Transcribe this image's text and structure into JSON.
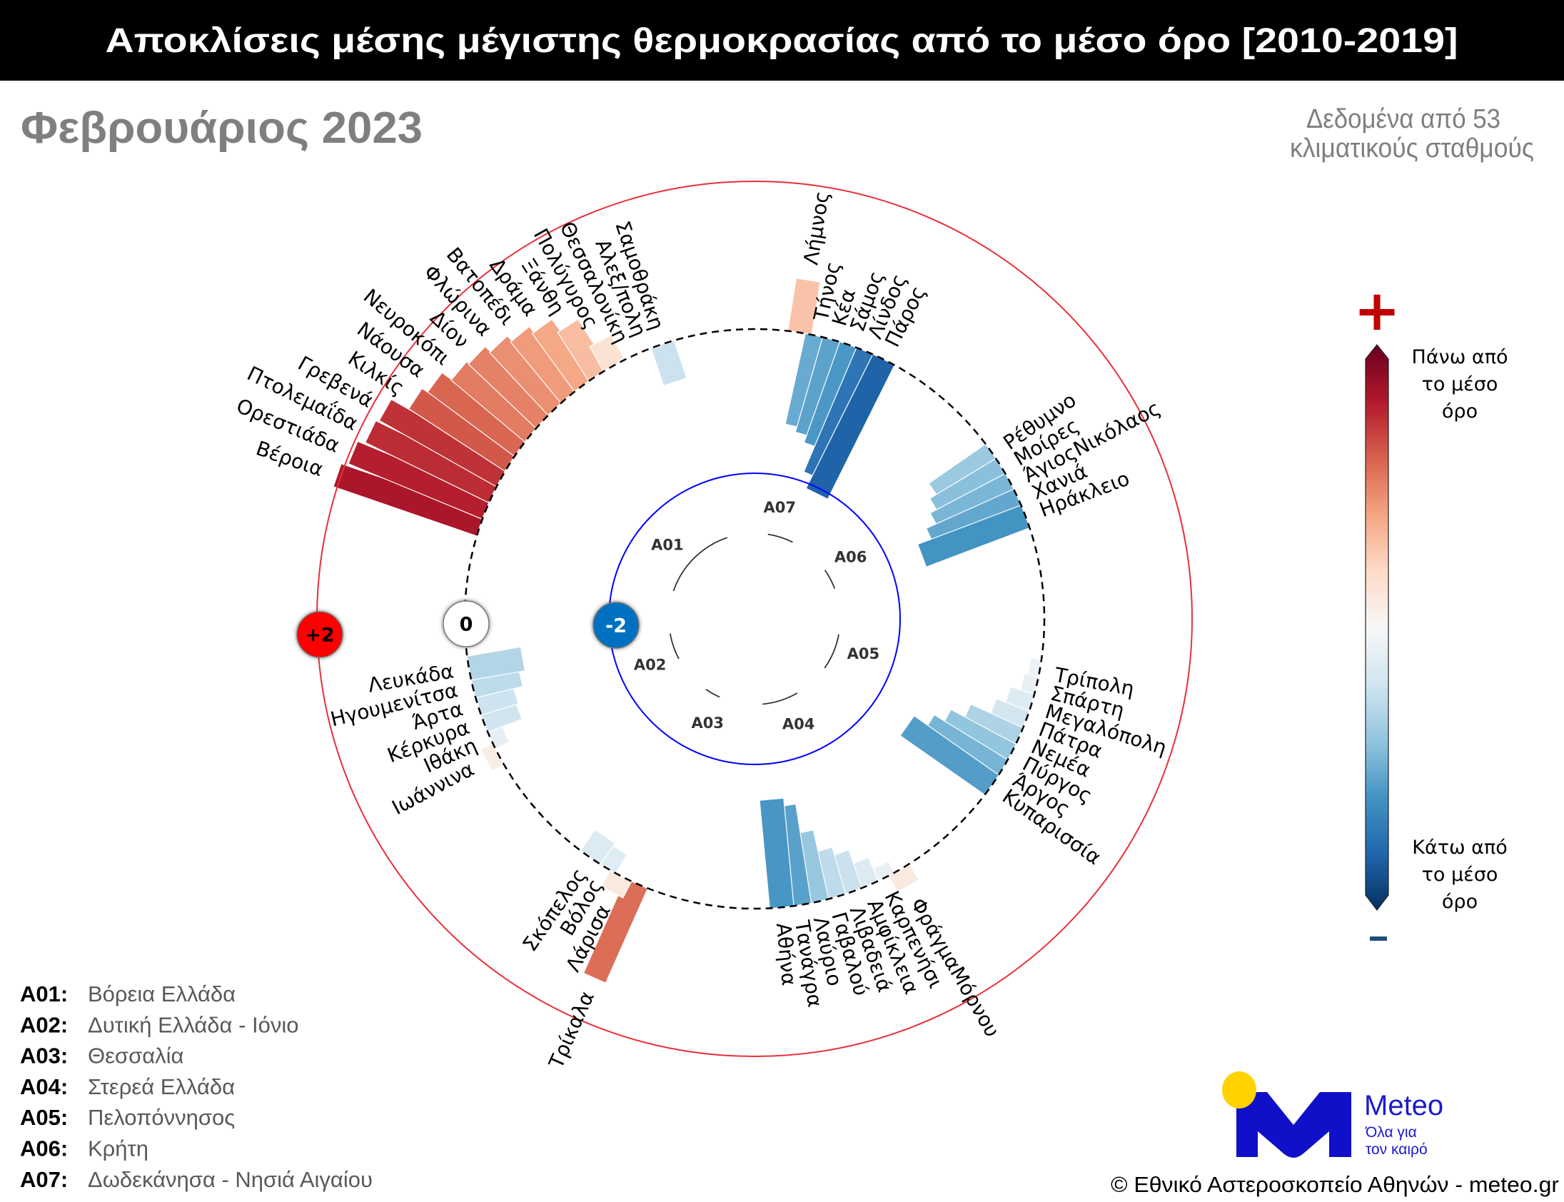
{
  "header": {
    "title": "Αποκλίσεις μέσης μέγιστης θερμοκρασίας από το μέσο όρο [2010-2019]"
  },
  "subtitle": "Φεβρουάριος 2023",
  "info": {
    "line1": "Δεδομένα από 53",
    "line2": "κλιματικούς σταθμούς"
  },
  "scale_markers": [
    {
      "label": "+2",
      "value": 2,
      "color": "#ff0000",
      "text_color": "#000000"
    },
    {
      "label": "0",
      "value": 0,
      "color": "#ffffff",
      "text_color": "#000000"
    },
    {
      "label": "-2",
      "value": -2,
      "color": "#0070c0",
      "text_color": "#ffffff"
    }
  ],
  "colorbar": {
    "plus_symbol": "+",
    "minus_symbol": "-",
    "top_label": [
      "Πάνω από",
      "το μέσο",
      "όρο"
    ],
    "bottom_label": [
      "Κάτω από",
      "το μέσο",
      "όρο"
    ],
    "colors": [
      "#67001f",
      "#b2182b",
      "#d6604d",
      "#f4a582",
      "#fddbc7",
      "#f7f7f7",
      "#d1e5f0",
      "#92c5de",
      "#4393c3",
      "#2166ac",
      "#053061"
    ],
    "plus_color": "#c00000",
    "minus_color": "#1f4e79"
  },
  "legend": [
    {
      "code": "A01:",
      "name": "Βόρεια Ελλάδα"
    },
    {
      "code": "A02:",
      "name": "Δυτική Ελλάδα - Ιόνιο"
    },
    {
      "code": "A03:",
      "name": "Θεσσαλία"
    },
    {
      "code": "A04:",
      "name": "Στερεά Ελλάδα"
    },
    {
      "code": "A05:",
      "name": "Πελοπόννησος"
    },
    {
      "code": "A06:",
      "name": "Κρήτη"
    },
    {
      "code": "A07:",
      "name": "Δωδεκάνησα - Νησιά Αιγαίου"
    }
  ],
  "logo": {
    "name": "Meteo",
    "tagline1": "Όλα για",
    "tagline2": "τον καιρό",
    "brand_color": "#1010c8",
    "sun_color": "#ffd200"
  },
  "copyright": "© Εθνικό Αστεροσκοπείο Αθηνών - meteo.gr",
  "chart_data": {
    "type": "radial_bar",
    "title": "Αποκλίσεις μέσης μέγιστης θερμοκρασίας από το μέσο όρο [2010-2019]",
    "subtitle": "Φεβρουάριος 2023",
    "unit": "°C deviation",
    "radial_ticks": [
      -2,
      0,
      2
    ],
    "color_scale": "RdBu_r",
    "vlim": [
      -2.5,
      2.5
    ],
    "groups": [
      {
        "code": "A01",
        "name": "Βόρεια Ελλάδα",
        "stations": [
          {
            "name": "Βέροια",
            "value": 2.05,
            "angle": 289.0
          },
          {
            "name": "Ορεστιάδα",
            "value": 1.96,
            "angle": 292.5
          },
          {
            "name": "Πτολεμαΐδα",
            "value": 1.86,
            "angle": 296.0
          },
          {
            "name": "Γρεβενά",
            "value": 1.82,
            "angle": 299.5
          },
          {
            "name": "Κιλκίς",
            "value": 1.55,
            "angle": 303.0
          },
          {
            "name": "Νάουσα",
            "value": 1.46,
            "angle": 306.5
          },
          {
            "name": "Νευροκόπι",
            "value": 1.3,
            "angle": 310.0
          },
          {
            "name": "Δίον",
            "value": 1.26,
            "angle": 313.5
          },
          {
            "name": "Φλώρινα",
            "value": 1.16,
            "angle": 317.0
          },
          {
            "name": "Βατοπέδι",
            "value": 1.07,
            "angle": 320.5
          },
          {
            "name": "Δράμα",
            "value": 0.97,
            "angle": 324.0
          },
          {
            "name": "Ξάνθη",
            "value": 0.78,
            "angle": 327.5
          },
          {
            "name": "Πολύγυρος",
            "value": 0.38,
            "angle": 331.0
          },
          {
            "name": "Θεσσαλονίκη",
            "value": 0.02,
            "angle": 334.5
          },
          {
            "name": "Αλεξ/πολη",
            "value": -0.02,
            "angle": 338.0
          },
          {
            "name": "Σαμοθράκη",
            "value": -0.54,
            "angle": 341.5
          }
        ]
      },
      {
        "code": "A07",
        "name": "Δωδεκάνησα - Νησιά Αιγαίου",
        "stations": [
          {
            "name": "Λήμνος",
            "value": 0.72,
            "angle": 9.0
          },
          {
            "name": "Τήνος",
            "value": -1.26,
            "angle": 12.5
          },
          {
            "name": "Κέα",
            "value": -1.34,
            "angle": 16.0
          },
          {
            "name": "Σάμος",
            "value": -1.45,
            "angle": 19.5
          },
          {
            "name": "Λίνδος",
            "value": -1.83,
            "angle": 23.0
          },
          {
            "name": "Πάρος",
            "value": -2.03,
            "angle": 26.5
          }
        ]
      },
      {
        "code": "A06",
        "name": "Κρήτη",
        "stations": [
          {
            "name": "Ρέθυμνο",
            "value": -0.94,
            "angle": 55.3
          },
          {
            "name": "Μοίρες",
            "value": -1.05,
            "angle": 58.8
          },
          {
            "name": "ΆγιοςΝικόλαος",
            "value": -1.15,
            "angle": 62.3
          },
          {
            "name": "Χανιά",
            "value": -1.3,
            "angle": 65.8
          },
          {
            "name": "Ηράκλειο",
            "value": -1.5,
            "angle": 69.3
          }
        ]
      },
      {
        "code": "A05",
        "name": "Πελοπόννησος",
        "stations": [
          {
            "name": "Τρίπολη",
            "value": -0.15,
            "angle": 100.5
          },
          {
            "name": "Σπάρτη",
            "value": -0.2,
            "angle": 104.0
          },
          {
            "name": "Μεγαλόπολη",
            "value": -0.34,
            "angle": 107.5
          },
          {
            "name": "Πάτρα",
            "value": -0.48,
            "angle": 111.0
          },
          {
            "name": "Νεμέα",
            "value": -0.78,
            "angle": 114.5
          },
          {
            "name": "Πύργος",
            "value": -1.0,
            "angle": 118.0
          },
          {
            "name": "Άργος",
            "value": -1.17,
            "angle": 121.5
          },
          {
            "name": "Κυπαρισσία",
            "value": -1.4,
            "angle": 125.0
          }
        ]
      },
      {
        "code": "A04",
        "name": "Στερεά Ελλάδα",
        "stations": [
          {
            "name": "ΦράγμαΜόρνου",
            "value": 0.25,
            "angle": 150.1
          },
          {
            "name": "Καρπενήσι",
            "value": -0.18,
            "angle": 153.6
          },
          {
            "name": "Αμφίκλεια",
            "value": -0.35,
            "angle": 157.1
          },
          {
            "name": "Λιβαδειά",
            "value": -0.55,
            "angle": 160.6
          },
          {
            "name": "Γαβαλού",
            "value": -0.66,
            "angle": 164.1
          },
          {
            "name": "Λαύριο",
            "value": -0.96,
            "angle": 167.6
          },
          {
            "name": "Τανάγρα",
            "value": -1.36,
            "angle": 171.1
          },
          {
            "name": "Αθήνα",
            "value": -1.47,
            "angle": 174.6
          }
        ]
      },
      {
        "code": "A03",
        "name": "Θεσσαλία",
        "stations": [
          {
            "name": "Τρίκαλα",
            "value": 1.4,
            "angle": 204.0
          },
          {
            "name": "Λάρισα",
            "value": 0.25,
            "angle": 207.5
          },
          {
            "name": "Βόλος",
            "value": -0.3,
            "angle": 211.0
          },
          {
            "name": "Σκόπελος",
            "value": -0.35,
            "angle": 214.5
          }
        ]
      },
      {
        "code": "A02",
        "name": "Δυτική Ελλάδα - Ιόνιο",
        "stations": [
          {
            "name": "Ιωάννινα",
            "value": 0.18,
            "angle": 242.2
          },
          {
            "name": "Ιθάκη",
            "value": -0.21,
            "angle": 245.8
          },
          {
            "name": "Κέρκυρα",
            "value": -0.5,
            "angle": 249.4
          },
          {
            "name": "Άρτα",
            "value": -0.53,
            "angle": 253.0
          },
          {
            "name": "Ηγουμενίτσα",
            "value": -0.66,
            "angle": 256.6
          },
          {
            "name": "Λευκάδα",
            "value": -0.74,
            "angle": 260.2
          }
        ]
      }
    ]
  }
}
